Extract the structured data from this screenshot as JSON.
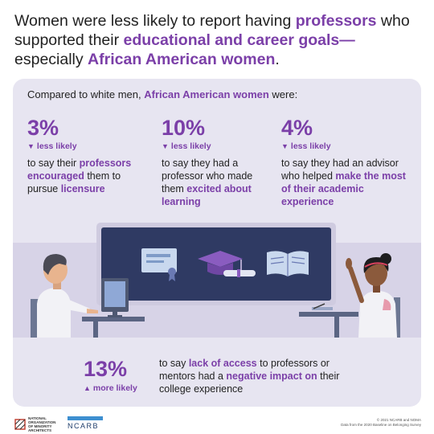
{
  "headline": {
    "p1": "Women were less likely to report having ",
    "h1": "professors",
    "p2": " who supported their ",
    "h2": "educational and career goals—",
    "p3": "especially ",
    "h3": "African American women",
    "p4": "."
  },
  "intro": {
    "prefix": "Compared to white men, ",
    "highlight": "African American women",
    "suffix": " were:"
  },
  "stats": [
    {
      "pct": "3%",
      "direction": "less likely",
      "desc": {
        "a": "to say their ",
        "b": "professors encouraged",
        "c": " them to pursue ",
        "d": "licensure"
      }
    },
    {
      "pct": "10%",
      "direction": "less likely",
      "desc": {
        "a": "to say they had a professor who made them ",
        "b": "excited about learning"
      }
    },
    {
      "pct": "4%",
      "direction": "less likely",
      "desc": {
        "a": "to say they had an advisor who helped ",
        "b": "make the most of their academic experience"
      }
    }
  ],
  "bottom": {
    "pct": "13%",
    "direction": "more likely",
    "desc": {
      "a": "to say ",
      "b": "lack of access",
      "c": " to professors or mentors had a ",
      "d": "negative impact on",
      "e": " their college experience"
    }
  },
  "footer": {
    "noma": "NATIONAL ORGANIZATION OF MINORITY ARCHITECTS",
    "ncarb": "NCARB",
    "copyright": "© 2021 NCARB and NOMA",
    "source": "Data from the 2020 Baseline on Belonging Survey"
  },
  "colors": {
    "accent": "#7b3fa8",
    "card": "#e7e5f1",
    "board": "#2f3a63"
  },
  "icons": [
    "down-triangle-icon",
    "up-triangle-icon",
    "certificate-icon",
    "graduation-cap-icon",
    "diploma-icon",
    "open-book-icon"
  ]
}
